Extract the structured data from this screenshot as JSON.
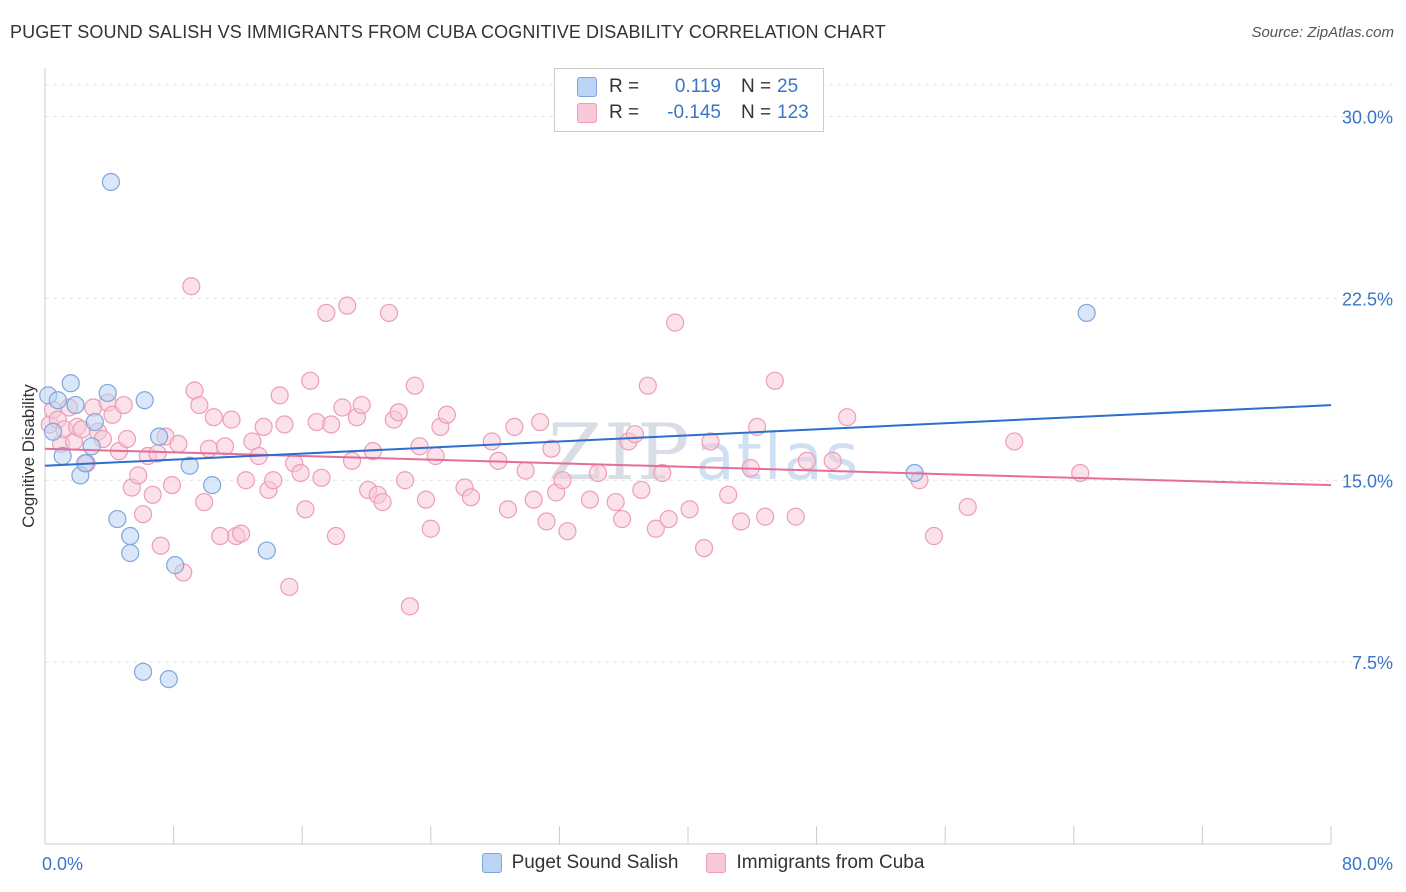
{
  "header": {
    "title": "PUGET SOUND SALISH VS IMMIGRANTS FROM CUBA COGNITIVE DISABILITY CORRELATION CHART",
    "source": "Source: ZipAtlas.com"
  },
  "watermark": {
    "zip": "ZIP",
    "atlas": "atlas"
  },
  "colors": {
    "blue_fill": "#bcd4f3",
    "blue_stroke": "#7fa6dc",
    "blue_line": "#2e6fcc",
    "pink_fill": "#f8c9d7",
    "pink_stroke": "#ee9db6",
    "pink_line": "#e56e99",
    "tick_label": "#3a76c8"
  },
  "stats": [
    {
      "r_label": "R =",
      "r_value": "0.119",
      "n_label": "N =",
      "n_value": "25"
    },
    {
      "r_label": "R =",
      "r_value": "-0.145",
      "n_label": "N =",
      "n_value": "123"
    }
  ],
  "legend": [
    {
      "label": "Puget Sound Salish"
    },
    {
      "label": "Immigrants from Cuba"
    }
  ],
  "chart_data": {
    "type": "scatter",
    "ylabel": "Cognitive Disability",
    "xlim": [
      0,
      80
    ],
    "ylim": [
      0,
      32
    ],
    "x_tick_labels": [
      {
        "value": 0,
        "label": "0.0%"
      },
      {
        "value": 80,
        "label": "80.0%"
      }
    ],
    "y_ticks": [
      {
        "value": 7.5,
        "label": "7.5%"
      },
      {
        "value": 15.0,
        "label": "15.0%"
      },
      {
        "value": 22.5,
        "label": "22.5%"
      },
      {
        "value": 30.0,
        "label": "30.0%"
      }
    ],
    "x_minor_ticks": [
      0,
      8,
      16,
      24,
      32,
      40,
      48,
      56,
      64,
      72,
      80
    ],
    "grid": "horizontal dashed",
    "series": [
      {
        "name": "Puget Sound Salish",
        "color_key": "blue",
        "trend": [
          [
            0,
            15.6
          ],
          [
            80,
            18.1
          ]
        ],
        "points": [
          [
            0.2,
            18.5
          ],
          [
            0.5,
            17.0
          ],
          [
            0.8,
            18.3
          ],
          [
            1.1,
            16.0
          ],
          [
            1.6,
            19.0
          ],
          [
            1.9,
            18.1
          ],
          [
            2.2,
            15.2
          ],
          [
            2.5,
            15.7
          ],
          [
            2.9,
            16.4
          ],
          [
            3.1,
            17.4
          ],
          [
            3.9,
            18.6
          ],
          [
            4.1,
            27.3
          ],
          [
            4.5,
            13.4
          ],
          [
            5.3,
            12.7
          ],
          [
            5.3,
            12.0
          ],
          [
            6.2,
            18.3
          ],
          [
            7.1,
            16.8
          ],
          [
            8.1,
            11.5
          ],
          [
            9.0,
            15.6
          ],
          [
            10.4,
            14.8
          ],
          [
            13.8,
            12.1
          ],
          [
            6.1,
            7.1
          ],
          [
            7.7,
            6.8
          ],
          [
            64.8,
            21.9
          ],
          [
            54.1,
            15.3
          ]
        ]
      },
      {
        "name": "Immigrants from Cuba",
        "color_key": "pink",
        "trend": [
          [
            0,
            16.3
          ],
          [
            80,
            14.8
          ]
        ],
        "points": [
          [
            0.3,
            17.3
          ],
          [
            0.5,
            17.9
          ],
          [
            0.8,
            17.5
          ],
          [
            1.0,
            16.5
          ],
          [
            1.2,
            17.1
          ],
          [
            1.5,
            18.0
          ],
          [
            1.8,
            16.6
          ],
          [
            2.0,
            17.2
          ],
          [
            2.3,
            17.1
          ],
          [
            2.6,
            15.7
          ],
          [
            3.0,
            18.0
          ],
          [
            3.3,
            17.0
          ],
          [
            3.6,
            16.7
          ],
          [
            3.9,
            18.2
          ],
          [
            4.2,
            17.7
          ],
          [
            4.6,
            16.2
          ],
          [
            4.9,
            18.1
          ],
          [
            5.1,
            16.7
          ],
          [
            5.4,
            14.7
          ],
          [
            5.8,
            15.2
          ],
          [
            6.1,
            13.6
          ],
          [
            6.4,
            16.0
          ],
          [
            6.7,
            14.4
          ],
          [
            7.0,
            16.1
          ],
          [
            7.2,
            12.3
          ],
          [
            7.5,
            16.8
          ],
          [
            7.9,
            14.8
          ],
          [
            8.3,
            16.5
          ],
          [
            8.6,
            11.2
          ],
          [
            9.1,
            23.0
          ],
          [
            9.3,
            18.7
          ],
          [
            9.6,
            18.1
          ],
          [
            9.9,
            14.1
          ],
          [
            10.2,
            16.3
          ],
          [
            10.5,
            17.6
          ],
          [
            10.9,
            12.7
          ],
          [
            11.2,
            16.4
          ],
          [
            11.6,
            17.5
          ],
          [
            11.9,
            12.7
          ],
          [
            12.2,
            12.8
          ],
          [
            12.5,
            15.0
          ],
          [
            12.9,
            16.6
          ],
          [
            13.3,
            16.0
          ],
          [
            13.6,
            17.2
          ],
          [
            13.9,
            14.6
          ],
          [
            14.2,
            15.0
          ],
          [
            14.6,
            18.5
          ],
          [
            14.9,
            17.3
          ],
          [
            15.2,
            10.6
          ],
          [
            15.5,
            15.7
          ],
          [
            15.9,
            15.3
          ],
          [
            16.2,
            13.8
          ],
          [
            16.5,
            19.1
          ],
          [
            16.9,
            17.4
          ],
          [
            17.2,
            15.1
          ],
          [
            17.5,
            21.9
          ],
          [
            17.8,
            17.3
          ],
          [
            18.1,
            12.7
          ],
          [
            18.5,
            18.0
          ],
          [
            18.8,
            22.2
          ],
          [
            19.1,
            15.8
          ],
          [
            19.4,
            17.6
          ],
          [
            19.7,
            18.1
          ],
          [
            20.1,
            14.6
          ],
          [
            20.4,
            16.2
          ],
          [
            20.7,
            14.4
          ],
          [
            21.0,
            14.1
          ],
          [
            21.4,
            21.9
          ],
          [
            21.7,
            17.5
          ],
          [
            22.0,
            17.8
          ],
          [
            22.4,
            15.0
          ],
          [
            22.7,
            9.8
          ],
          [
            23.0,
            18.9
          ],
          [
            23.3,
            16.4
          ],
          [
            23.7,
            14.2
          ],
          [
            24.0,
            13.0
          ],
          [
            24.3,
            16.0
          ],
          [
            24.6,
            17.2
          ],
          [
            25.0,
            17.7
          ],
          [
            26.1,
            14.7
          ],
          [
            26.5,
            14.3
          ],
          [
            27.8,
            16.6
          ],
          [
            28.2,
            15.8
          ],
          [
            28.8,
            13.8
          ],
          [
            29.2,
            17.2
          ],
          [
            29.9,
            15.4
          ],
          [
            30.4,
            14.2
          ],
          [
            30.8,
            17.4
          ],
          [
            31.2,
            13.3
          ],
          [
            31.5,
            16.3
          ],
          [
            31.8,
            14.5
          ],
          [
            32.2,
            15.0
          ],
          [
            32.5,
            12.9
          ],
          [
            33.9,
            14.2
          ],
          [
            34.4,
            15.3
          ],
          [
            35.5,
            14.1
          ],
          [
            35.9,
            13.4
          ],
          [
            36.3,
            16.6
          ],
          [
            36.7,
            16.9
          ],
          [
            37.1,
            14.6
          ],
          [
            37.5,
            18.9
          ],
          [
            38.0,
            13.0
          ],
          [
            38.4,
            15.3
          ],
          [
            38.8,
            13.4
          ],
          [
            39.2,
            21.5
          ],
          [
            40.1,
            13.8
          ],
          [
            41.0,
            12.2
          ],
          [
            41.4,
            16.6
          ],
          [
            42.5,
            14.4
          ],
          [
            43.3,
            13.3
          ],
          [
            43.9,
            15.5
          ],
          [
            44.3,
            17.2
          ],
          [
            44.8,
            13.5
          ],
          [
            45.4,
            19.1
          ],
          [
            46.7,
            13.5
          ],
          [
            47.4,
            15.8
          ],
          [
            49.0,
            15.8
          ],
          [
            49.9,
            17.6
          ],
          [
            54.4,
            15.0
          ],
          [
            55.3,
            12.7
          ],
          [
            57.4,
            13.9
          ],
          [
            60.3,
            16.6
          ],
          [
            64.4,
            15.3
          ]
        ]
      }
    ]
  }
}
